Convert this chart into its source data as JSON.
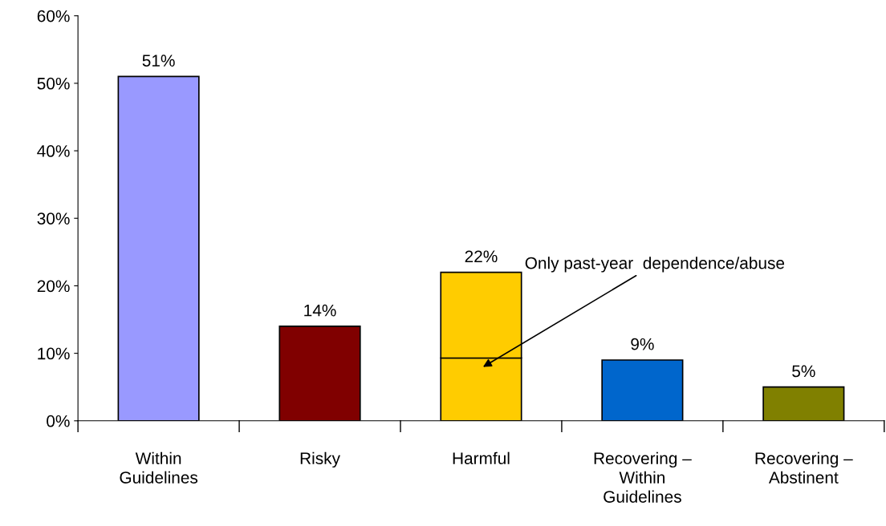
{
  "chart_data": {
    "type": "bar",
    "stacked": true,
    "categories": [
      "Within\nGuidelines",
      "Risky",
      "Harmful",
      "Recovering –\nWithin\nGuidelines",
      "Recovering –\nAbstinent"
    ],
    "series": [
      {
        "colors": [
          "#9999ff",
          "#800000",
          "#ffcc00",
          "#0066cc",
          "#808000"
        ],
        "values": [
          51,
          14,
          9.3,
          9,
          5
        ]
      },
      {
        "colors": [
          "#9999ff",
          "#800000",
          "#ffcc00",
          "#0066cc",
          "#808000"
        ],
        "values": [
          null,
          null,
          12.7,
          null,
          null
        ]
      }
    ],
    "totals": [
      "51%",
      "14%",
      "22%",
      "9%",
      "5%"
    ],
    "ylim": [
      0,
      60
    ],
    "yticks": [
      {
        "value": 0,
        "label": "0%"
      },
      {
        "value": 10,
        "label": "10%"
      },
      {
        "value": 20,
        "label": "20%"
      },
      {
        "value": 30,
        "label": "30%"
      },
      {
        "value": 40,
        "label": "40%"
      },
      {
        "value": 50,
        "label": "50%"
      },
      {
        "value": 60,
        "label": "60%"
      }
    ],
    "annotations": [
      "Only past-year  dependence/abuse"
    ],
    "grid": false,
    "legend": false
  }
}
